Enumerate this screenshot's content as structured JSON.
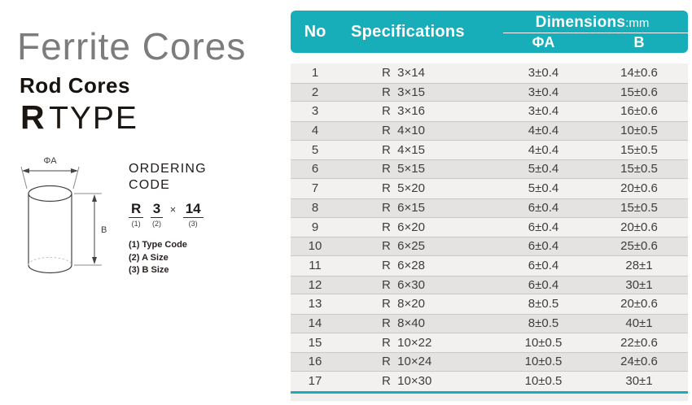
{
  "header": {
    "title": "Ferrite Cores",
    "subtitle": "Rod Cores",
    "type_letter": "R",
    "type_word": "TYPE"
  },
  "diagram": {
    "phi_a_label": "ΦA",
    "b_label": "B"
  },
  "ordering": {
    "title": "ORDERING CODE",
    "times": "×",
    "code": [
      {
        "text": "R",
        "sub": "(1)"
      },
      {
        "text": "3",
        "sub": "(2)"
      },
      {
        "text": "14",
        "sub": "(3)"
      }
    ],
    "legend": [
      "(1) Type Code",
      "(2) A Size",
      "(3) B Size"
    ]
  },
  "table": {
    "col_no": "No",
    "col_spec": "Specifications",
    "col_dims": "Dimensions",
    "col_dims_unit": ":mm",
    "col_a": "ΦA",
    "col_b": "B",
    "rows": [
      {
        "no": "1",
        "spec": "R  3×14",
        "a": "3±0.4",
        "b": "14±0.6"
      },
      {
        "no": "2",
        "spec": "R  3×15",
        "a": "3±0.4",
        "b": "15±0.6"
      },
      {
        "no": "3",
        "spec": "R  3×16",
        "a": "3±0.4",
        "b": "16±0.6"
      },
      {
        "no": "4",
        "spec": "R  4×10",
        "a": "4±0.4",
        "b": "10±0.5"
      },
      {
        "no": "5",
        "spec": "R  4×15",
        "a": "4±0.4",
        "b": "15±0.5"
      },
      {
        "no": "6",
        "spec": "R  5×15",
        "a": "5±0.4",
        "b": "15±0.5"
      },
      {
        "no": "7",
        "spec": "R  5×20",
        "a": "5±0.4",
        "b": "20±0.6"
      },
      {
        "no": "8",
        "spec": "R  6×15",
        "a": "6±0.4",
        "b": "15±0.5"
      },
      {
        "no": "9",
        "spec": "R  6×20",
        "a": "6±0.4",
        "b": "20±0.6"
      },
      {
        "no": "10",
        "spec": "R  6×25",
        "a": "6±0.4",
        "b": "25±0.6"
      },
      {
        "no": "11",
        "spec": "R  6×28",
        "a": "6±0.4",
        "b": "28±1"
      },
      {
        "no": "12",
        "spec": "R  6×30",
        "a": "6±0.4",
        "b": "30±1"
      },
      {
        "no": "13",
        "spec": "R  8×20",
        "a": "8±0.5",
        "b": "20±0.6"
      },
      {
        "no": "14",
        "spec": "R  8×40",
        "a": "8±0.5",
        "b": "40±1"
      },
      {
        "no": "15",
        "spec": "R  10×22",
        "a": "10±0.5",
        "b": "22±0.6"
      },
      {
        "no": "16",
        "spec": "R  10×24",
        "a": "10±0.5",
        "b": "24±0.6"
      },
      {
        "no": "17",
        "spec": "R  10×30",
        "a": "10±0.5",
        "b": "30±1"
      }
    ]
  },
  "colors": {
    "teal": "#18aeb9",
    "title_gray": "#7c7c7c",
    "row_odd": "#f2f1ef",
    "row_even": "#e4e3e1"
  }
}
